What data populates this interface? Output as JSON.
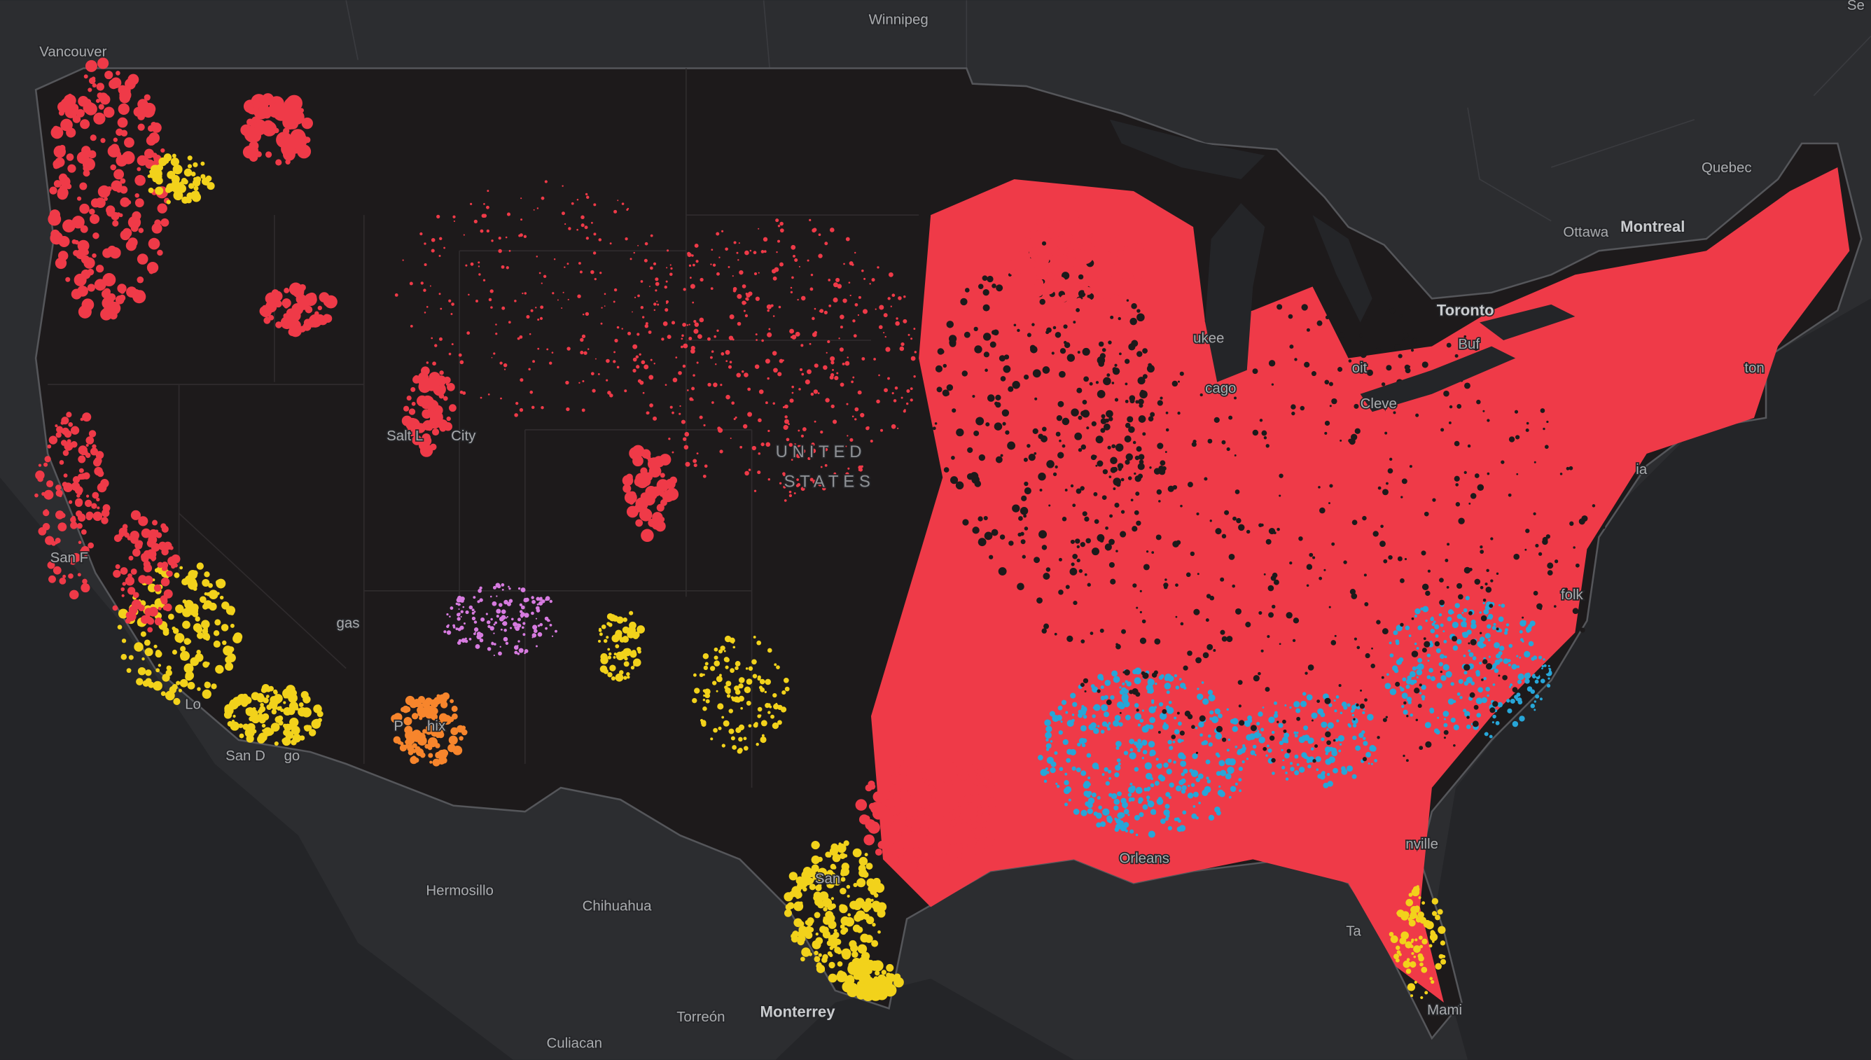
{
  "map": {
    "country_label": [
      "UNITED",
      "STATES"
    ],
    "places": [
      "Vancouver",
      "Winnipeg",
      "Quebec",
      "Ottawa",
      "Montreal",
      "Toronto",
      "Buf",
      "ukee",
      "cago",
      "oit",
      "Cleve",
      "ton",
      "ia",
      "Salt L",
      "City",
      "San F",
      "gas",
      "Lo",
      "San D",
      "go",
      "P",
      "hix",
      "Hermosillo",
      "Chihuahua",
      "Orleans",
      "nville",
      "folk",
      "Mami",
      "Torreón",
      "Monterrey",
      "Culiacan",
      "Se",
      "San",
      "Ta"
    ]
  }
}
